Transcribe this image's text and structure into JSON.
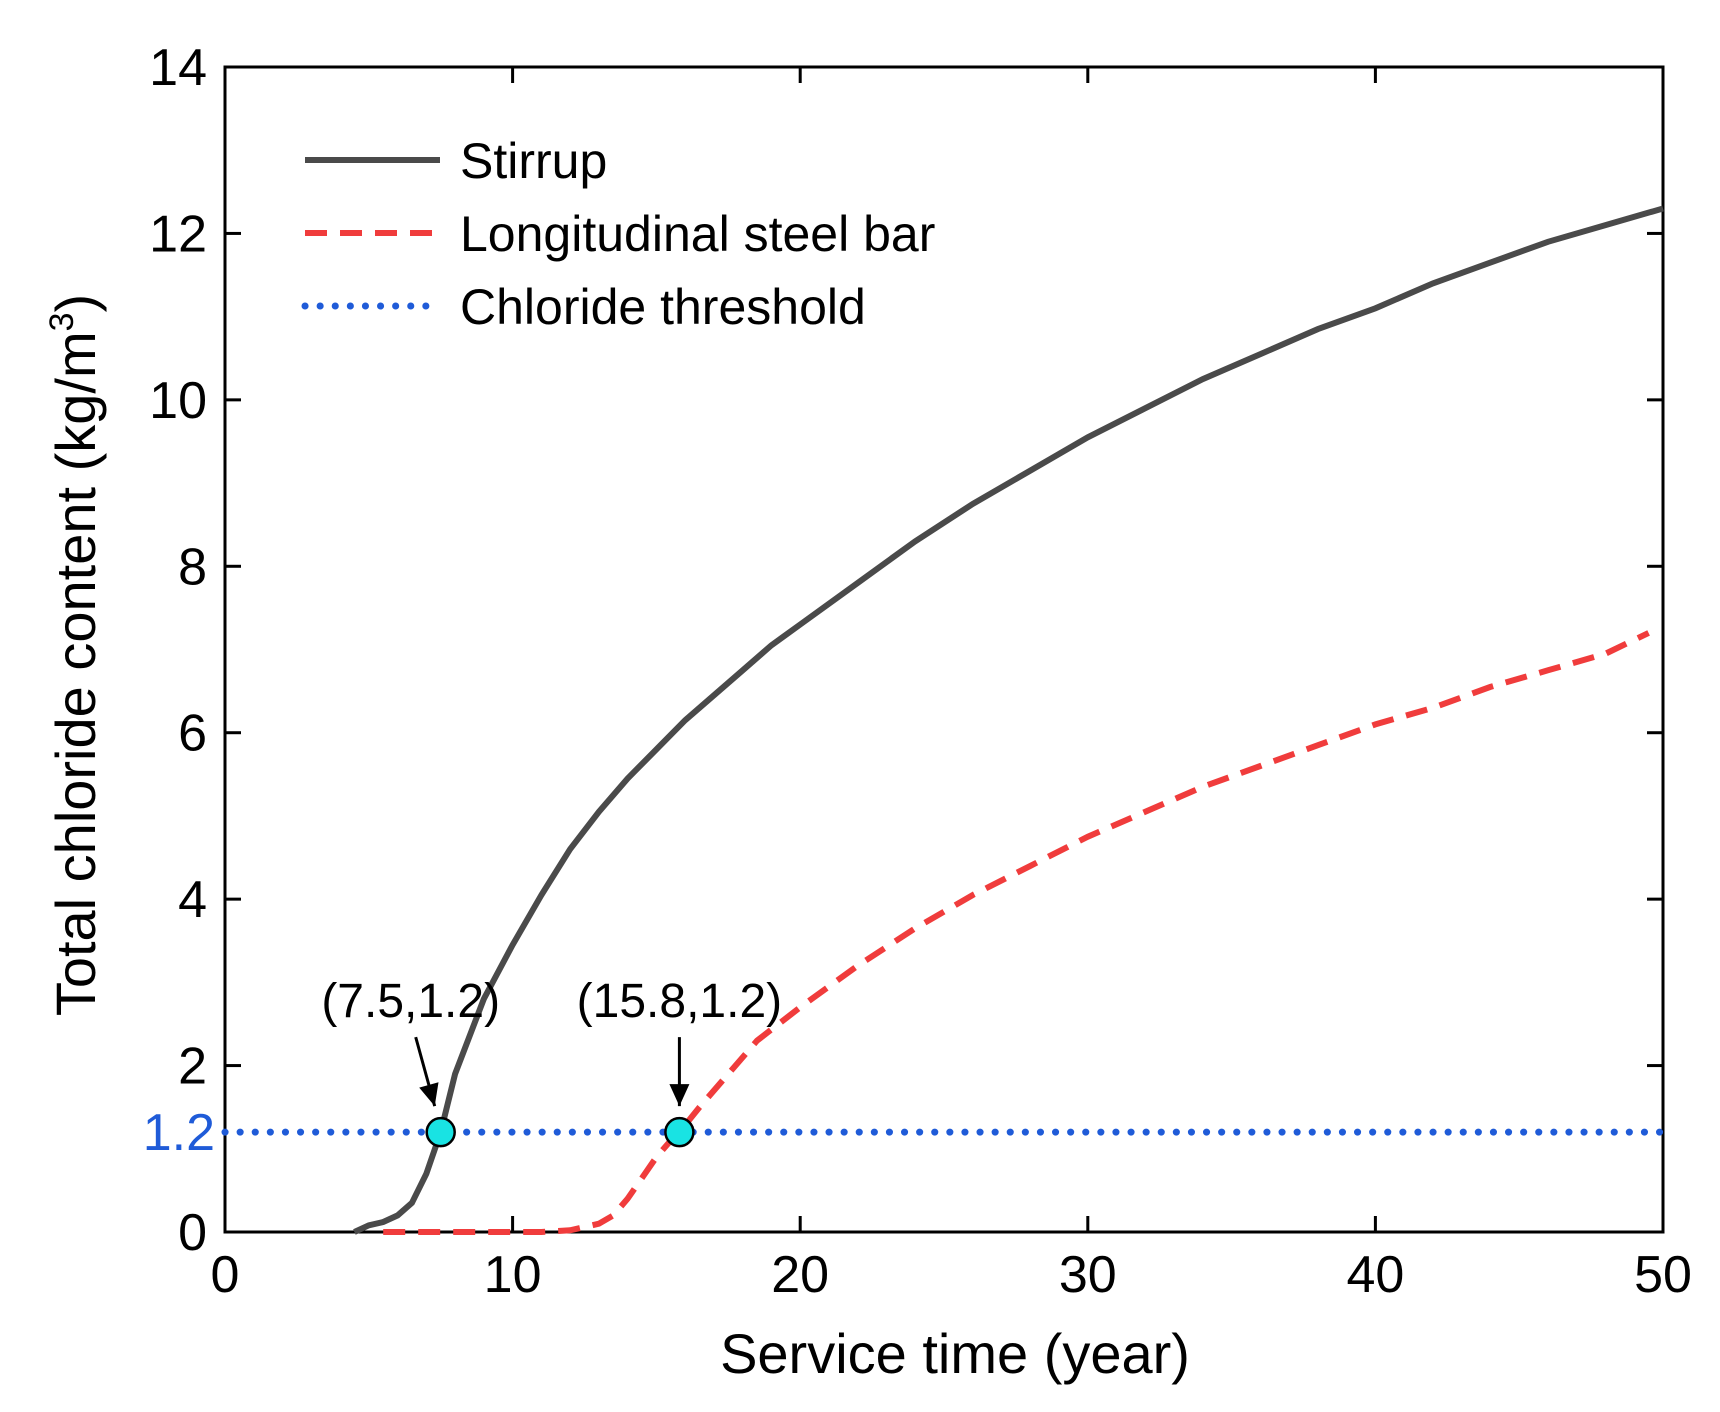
{
  "chart_data": {
    "type": "line",
    "title": "",
    "xlabel": "Service time (year)",
    "ylabel_main": "Total chloride content (kg/m",
    "ylabel_sup": "3",
    "ylabel_close": ")",
    "xlim": [
      0,
      50
    ],
    "ylim": [
      0,
      14
    ],
    "xticks": [
      "0",
      "10",
      "20",
      "30",
      "40",
      "50"
    ],
    "yticks": [
      "0",
      "2",
      "4",
      "6",
      "8",
      "10",
      "12",
      "14"
    ],
    "xtick_values": [
      0,
      10,
      20,
      30,
      40,
      50
    ],
    "ytick_values": [
      0,
      2,
      4,
      6,
      8,
      10,
      12,
      14
    ],
    "grid": false,
    "legend_position": "top-left",
    "threshold_label": "1.2",
    "series": [
      {
        "name": "Stirrup",
        "style": "solid",
        "color": "#4a4a4a",
        "x": [
          4.5,
          5.0,
          5.5,
          6.0,
          6.5,
          7.0,
          7.5,
          8.0,
          9.0,
          10.0,
          11.0,
          12.0,
          13.0,
          14.0,
          15.0,
          16.0,
          17.0,
          18.0,
          19.0,
          20.0,
          22.0,
          24.0,
          26.0,
          28.0,
          30.0,
          32.0,
          34.0,
          36.0,
          38.0,
          40.0,
          42.0,
          44.0,
          46.0,
          48.0,
          50.0
        ],
        "values": [
          0.0,
          0.08,
          0.12,
          0.2,
          0.35,
          0.7,
          1.2,
          1.9,
          2.8,
          3.45,
          4.05,
          4.6,
          5.05,
          5.45,
          5.8,
          6.15,
          6.45,
          6.75,
          7.05,
          7.3,
          7.8,
          8.3,
          8.75,
          9.15,
          9.55,
          9.9,
          10.25,
          10.55,
          10.85,
          11.1,
          11.4,
          11.65,
          11.9,
          12.1,
          12.3
        ]
      },
      {
        "name": "Longitudinal steel bar",
        "style": "dashed",
        "color": "#f03c3c",
        "x": [
          5.5,
          7.0,
          9.0,
          11.0,
          12.0,
          13.0,
          13.5,
          14.0,
          14.5,
          15.0,
          15.5,
          15.8,
          16.5,
          17.5,
          18.5,
          20.0,
          22.0,
          24.0,
          26.0,
          28.0,
          30.0,
          32.0,
          34.0,
          36.0,
          38.0,
          40.0,
          42.0,
          44.0,
          46.0,
          48.0,
          49.5
        ],
        "values": [
          0.0,
          0.0,
          0.0,
          0.0,
          0.02,
          0.1,
          0.2,
          0.4,
          0.65,
          0.9,
          1.1,
          1.2,
          1.5,
          1.9,
          2.3,
          2.7,
          3.2,
          3.65,
          4.05,
          4.4,
          4.75,
          5.05,
          5.35,
          5.6,
          5.85,
          6.1,
          6.3,
          6.55,
          6.75,
          6.95,
          7.2
        ]
      },
      {
        "name": "Chloride threshold",
        "style": "dotted",
        "color": "#1f5bd8",
        "x": [
          0,
          50
        ],
        "values": [
          1.2,
          1.2
        ]
      }
    ],
    "markers": [
      {
        "x": 7.5,
        "y": 1.2,
        "label": "(7.5,1.2)",
        "color": "#19e3e3"
      },
      {
        "x": 15.8,
        "y": 1.2,
        "label": "(15.8,1.2)",
        "color": "#19e3e3"
      }
    ]
  }
}
